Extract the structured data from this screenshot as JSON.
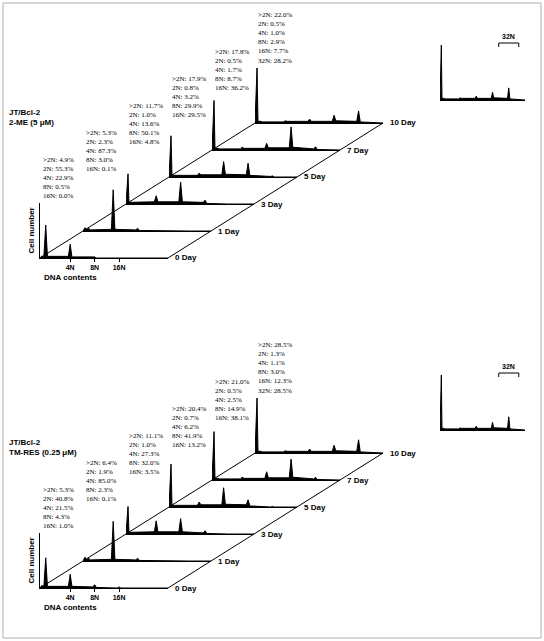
{
  "chart_data": [
    {
      "type": "area",
      "title": "JT/Bcl-2\n2-ME (5 μM)",
      "xlabel": "DNA contents",
      "ylabel": "Cell number",
      "log": "x",
      "grid": false,
      "tick_labels": "x",
      "color": "#000000",
      "x": [
        1.7,
        1.8,
        1.85,
        1.9,
        2,
        2.1,
        3.8,
        4,
        4.2,
        7.6,
        8,
        8.4,
        15.2,
        16,
        16.8,
        30.4,
        32,
        33.6,
        64
      ],
      "xlim": [
        1.7,
        64
      ],
      "xticks": [
        {
          "value": 4,
          "label": "4N"
        },
        {
          "value": 8,
          "label": "8N"
        },
        {
          "value": 16,
          "label": "16N"
        }
      ],
      "ylim": [
        0,
        100
      ],
      "series": [
        {
          "name": "0 Day",
          "values": [
            0,
            4,
            2,
            4,
            60,
            3,
            3,
            25,
            2,
            1,
            2,
            0,
            0,
            0,
            0,
            0,
            0,
            0,
            0
          ],
          "annotations": [
            ">2N: 4.9%",
            "2N: 55.3%",
            "4N: 22.9%",
            "8N: 0.5%",
            "16N: 0.0%"
          ]
        },
        {
          "name": "1 Day",
          "values": [
            0,
            6,
            2,
            3,
            5,
            2,
            3,
            75,
            3,
            2,
            5,
            1,
            0,
            1,
            0,
            0,
            0,
            0,
            0
          ],
          "annotations": [
            ">2N: 5.3%",
            "2N: 2.3%",
            "4N: 87.3%",
            "8N: 3.0%",
            "16N: 0.1%"
          ]
        },
        {
          "name": "3 Day",
          "values": [
            0,
            55,
            3,
            3,
            4,
            3,
            4,
            15,
            4,
            4,
            40,
            4,
            3,
            7,
            1,
            0,
            0,
            0,
            0
          ],
          "annotations": [
            ">2N: 11.7%",
            "2N: 1.0%",
            "4N: 13.6%",
            "8N: 50.1%",
            "16N: 4.8%"
          ]
        },
        {
          "name": "5 Day",
          "values": [
            0,
            75,
            4,
            3,
            3,
            3,
            3,
            7,
            4,
            4,
            28,
            5,
            4,
            25,
            3,
            1,
            2,
            0,
            0
          ],
          "annotations": [
            ">2N: 17.9%",
            "2N: 0.8%",
            "4N: 3.2%",
            "8N: 29.9%",
            "16N: 29.5%"
          ]
        },
        {
          "name": "7 Day",
          "values": [
            0,
            90,
            4,
            3,
            3,
            2,
            2,
            5,
            3,
            3,
            12,
            4,
            4,
            42,
            5,
            2,
            6,
            1,
            0
          ],
          "annotations": [
            ">2N: 17.8%",
            "2N: 0.5%",
            "4N: 1.7%",
            "8N: 8.7%",
            "16N: 36.2%"
          ]
        },
        {
          "name": "10 Day",
          "values": [
            0,
            100,
            4,
            3,
            3,
            2,
            2,
            4,
            3,
            3,
            7,
            3,
            3,
            14,
            4,
            3,
            22,
            2,
            0
          ],
          "annotations": [
            ">2N: 22.0%",
            "2N: 0.5%",
            "4N: 1.0%",
            "8N: 2.9%",
            "16N: 7.7%",
            "32N: 28.2%"
          ]
        }
      ],
      "inset": {
        "series": "10 Day",
        "label": "32N",
        "x": 32
      }
    },
    {
      "type": "area",
      "title": "JT/Bcl-2\nTM-RES (0.25 μM)",
      "xlabel": "DNA contents",
      "ylabel": "Cell number",
      "log": "x",
      "grid": false,
      "tick_labels": "x",
      "color": "#000000",
      "x": [
        1.7,
        1.8,
        1.85,
        1.9,
        2,
        2.1,
        3.8,
        4,
        4.2,
        7.6,
        8,
        8.4,
        15.2,
        16,
        16.8,
        30.4,
        32,
        33.6,
        64
      ],
      "xlim": [
        1.7,
        64
      ],
      "xticks": [
        {
          "value": 4,
          "label": "4N"
        },
        {
          "value": 8,
          "label": "8N"
        },
        {
          "value": 16,
          "label": "16N"
        }
      ],
      "ylim": [
        0,
        100
      ],
      "series": [
        {
          "name": "0 Day",
          "values": [
            0,
            5,
            2,
            4,
            55,
            3,
            3,
            25,
            3,
            2,
            6,
            1,
            0,
            2,
            0,
            0,
            0,
            0,
            0
          ],
          "annotations": [
            ">2N: 5.3%",
            "2N: 40.8%",
            "4N: 21.5%",
            "8N: 4.3%",
            "16N: 1.0%"
          ]
        },
        {
          "name": "1 Day",
          "values": [
            0,
            7,
            2,
            3,
            5,
            2,
            3,
            72,
            3,
            2,
            5,
            1,
            0,
            1,
            0,
            0,
            0,
            0,
            0
          ],
          "annotations": [
            ">2N: 6.4%",
            "2N: 1.9%",
            "4N: 85.0%",
            "8N: 2.3%",
            "16N: 0.1%"
          ]
        },
        {
          "name": "3 Day",
          "values": [
            0,
            50,
            3,
            3,
            4,
            3,
            4,
            24,
            4,
            4,
            28,
            4,
            2,
            6,
            1,
            0,
            0,
            0,
            0
          ],
          "annotations": [
            ">2N: 11.1%",
            "2N: 1.0%",
            "4N: 27.3%",
            "8N: 32.0%",
            "16N: 3.5%"
          ]
        },
        {
          "name": "5 Day",
          "values": [
            0,
            78,
            4,
            3,
            3,
            3,
            3,
            9,
            4,
            4,
            35,
            5,
            4,
            13,
            2,
            0,
            1,
            0,
            0
          ],
          "annotations": [
            ">2N: 20.4%",
            "2N: 0.7%",
            "4N: 6.2%",
            "8N: 41.9%",
            "16N: 13.2%"
          ]
        },
        {
          "name": "7 Day",
          "values": [
            0,
            88,
            4,
            3,
            3,
            2,
            2,
            5,
            3,
            3,
            15,
            4,
            4,
            38,
            5,
            2,
            5,
            1,
            0
          ],
          "annotations": [
            ">2N: 21.0%",
            "2N: 0.5%",
            "4N: 2.5%",
            "8N: 14.9%",
            "16N: 38.1%"
          ]
        },
        {
          "name": "10 Day",
          "values": [
            0,
            100,
            4,
            3,
            3,
            2,
            2,
            4,
            3,
            3,
            7,
            3,
            3,
            14,
            4,
            3,
            24,
            2,
            0
          ],
          "annotations": [
            ">2N: 28.5%",
            "2N: 1.3%",
            "4N: 1.1%",
            "8N: 3.0%",
            "16N: 12.3%",
            "32N: 28.5%"
          ]
        }
      ],
      "inset": {
        "series": "10 Day",
        "label": "32N",
        "x": 32
      }
    }
  ]
}
